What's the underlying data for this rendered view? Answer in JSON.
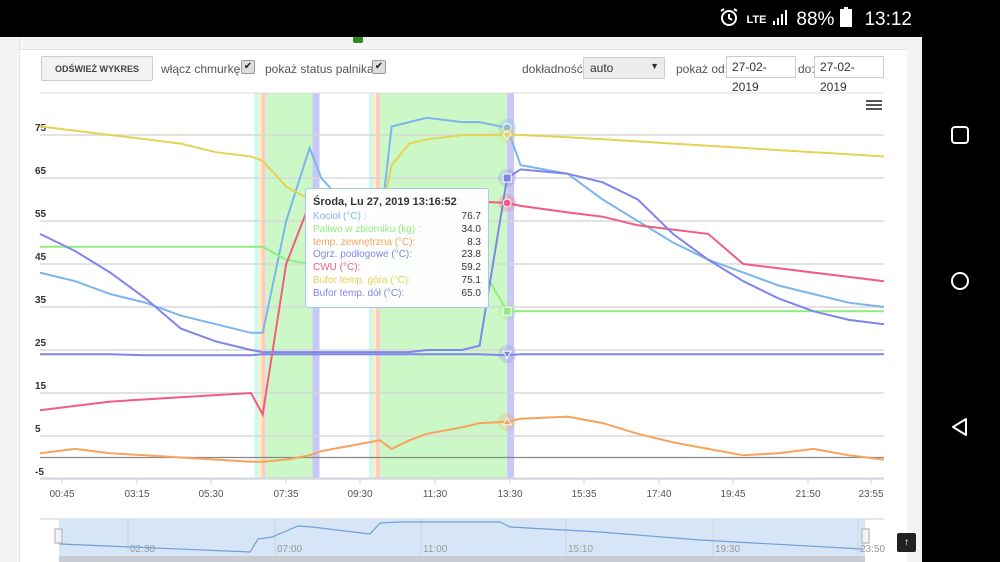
{
  "status_bar": {
    "time": "13:12",
    "battery": "88%",
    "network": "LTE"
  },
  "toolbar": {
    "refresh_label": "ODŚWIEŻ WYKRES",
    "tooltip_toggle_label": "włącz chmurkę",
    "tooltip_toggle_checked": true,
    "burner_status_label": "pokaż status palnika",
    "burner_status_checked": true,
    "precision_label": "dokładność:",
    "precision_value": "auto",
    "from_label": "pokaż od:",
    "from_value": "27-02-2019",
    "to_label": "do:",
    "to_value": "27-02-2019"
  },
  "tooltip": {
    "title": "Środa, Lu 27, 2019 13:16:52",
    "rows": [
      {
        "name": "Kocioł (°C) :",
        "value": "76.7",
        "color": "#7cb5ec"
      },
      {
        "name": "Paliwo w zbiorniku (kg) :",
        "value": "34.0",
        "color": "#90ed7d"
      },
      {
        "name": "temp. zewnętrzna (°C):",
        "value": "8.3",
        "color": "#f7a35c"
      },
      {
        "name": "Ogrz. podłogowe (°C):",
        "value": "23.8",
        "color": "#8085e9"
      },
      {
        "name": "CWU (°C):",
        "value": "59.2",
        "color": "#f15c80"
      },
      {
        "name": "Bufor temp. góra (°C):",
        "value": "75.1",
        "color": "#e4d354"
      },
      {
        "name": "Bufor temp. dół (°C):",
        "value": "65.0",
        "color": "#8085e9"
      }
    ]
  },
  "navigator": {
    "ticks": [
      "02:30",
      "07:00",
      "11:00",
      "15:10",
      "19:30",
      "23:50"
    ]
  },
  "chart_data": {
    "type": "line",
    "title": "",
    "xlabel": "",
    "ylabel": "",
    "ylim": [
      -5,
      80
    ],
    "y_ticks": [
      75,
      65,
      55,
      45,
      35,
      25,
      15,
      5,
      -5
    ],
    "x_ticks": [
      "00:45",
      "03:15",
      "05:30",
      "07:35",
      "09:30",
      "11:30",
      "13:30",
      "15:35",
      "17:40",
      "19:45",
      "21:50",
      "23:55"
    ],
    "x": [
      "00:00",
      "01:00",
      "02:00",
      "03:00",
      "04:00",
      "05:00",
      "06:00",
      "06:20",
      "07:00",
      "07:40",
      "08:00",
      "09:00",
      "09:40",
      "10:00",
      "10:30",
      "11:00",
      "12:00",
      "12:30",
      "13:17",
      "13:40",
      "15:00",
      "16:00",
      "17:00",
      "18:00",
      "19:00",
      "20:00",
      "21:00",
      "22:00",
      "23:00",
      "24:00"
    ],
    "series": [
      {
        "name": "Kocioł (°C)",
        "color": "#7cb5ec",
        "values": [
          43,
          41,
          38,
          36,
          33,
          31,
          29,
          29,
          55,
          72,
          65,
          56,
          53,
          77,
          78,
          79,
          78,
          78,
          76.7,
          68,
          66,
          60,
          55,
          50,
          46,
          43,
          40,
          38,
          36,
          35
        ]
      },
      {
        "name": "Paliwo w zbiorniku (kg)",
        "color": "#90ed7d",
        "values": [
          49,
          49,
          49,
          49,
          49,
          49,
          49,
          49,
          46,
          45,
          45,
          45,
          45,
          45,
          45,
          45,
          45,
          45,
          34,
          34,
          34,
          34,
          34,
          34,
          34,
          34,
          34,
          34,
          34,
          34
        ]
      },
      {
        "name": "temp. zewnętrzna (°C)",
        "color": "#f7a35c",
        "values": [
          1,
          2,
          1,
          0.5,
          0,
          -0.5,
          -1,
          -1,
          -0.5,
          0.5,
          1.5,
          3,
          4,
          2,
          4,
          5.5,
          7,
          8,
          8.3,
          9,
          9.5,
          8,
          5.5,
          3.5,
          2,
          0.5,
          1,
          2,
          0.5,
          -0.5
        ]
      },
      {
        "name": "Ogrz. podłogowe (°C)",
        "color": "#8085e9",
        "values": [
          24,
          24,
          24,
          23.8,
          23.8,
          23.8,
          23.8,
          24,
          24,
          24,
          24,
          24,
          24,
          24,
          24,
          24,
          24,
          24,
          23.8,
          24,
          24,
          24,
          24,
          24,
          24,
          24,
          24,
          24,
          24,
          24
        ]
      },
      {
        "name": "CWU (°C)",
        "color": "#f15c80",
        "values": [
          11,
          12,
          13,
          13.5,
          14,
          14.5,
          15,
          10,
          45,
          59,
          60,
          60,
          60,
          60,
          60,
          60,
          60,
          59.5,
          59.2,
          58.5,
          57,
          56,
          54,
          53,
          52,
          45,
          44,
          43,
          42,
          41
        ]
      },
      {
        "name": "Bufor temp. góra (°C)",
        "color": "#e4d354",
        "values": [
          77,
          76,
          75,
          74,
          73,
          71,
          70,
          69,
          63,
          60,
          60,
          57,
          55,
          68,
          73,
          74,
          75,
          75,
          75.1,
          75,
          74.5,
          74,
          73.5,
          73,
          72.5,
          72,
          71.5,
          71,
          70.5,
          70
        ]
      },
      {
        "name": "Bufor temp. dół (°C)",
        "color": "#8085e9",
        "values": [
          52,
          48,
          43,
          37,
          30,
          27,
          25,
          24.5,
          24.5,
          24.5,
          24.5,
          24.5,
          24.5,
          24.5,
          24.5,
          25,
          25,
          26,
          65,
          67,
          66,
          64,
          60,
          52,
          46,
          41,
          37,
          34,
          32,
          31
        ]
      }
    ],
    "burner_bands": [
      {
        "start": "06:25",
        "end": "07:45",
        "state": "on"
      },
      {
        "start": "09:40",
        "end": "13:17",
        "state": "on"
      }
    ],
    "crosshair": "13:17",
    "legend": "none"
  }
}
